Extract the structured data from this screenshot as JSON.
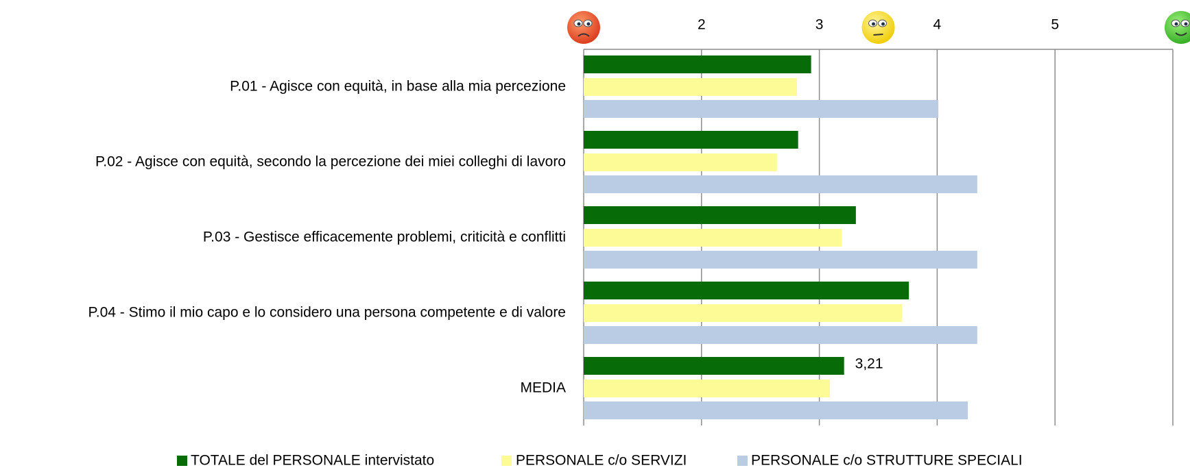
{
  "chart_data": {
    "type": "bar",
    "orientation": "horizontal",
    "categories": [
      "P.01 - Agisce con equità, in base alla mia percezione",
      "P.02 - Agisce con equità, secondo la percezione dei miei colleghi di lavoro",
      "P.03 - Gestisce efficacemente problemi, criticità e conflitti",
      "P.04 - Stimo il mio capo e lo considero una persona competente e di valore",
      "MEDIA"
    ],
    "series": [
      {
        "name": "TOTALE del PERSONALE intervistato",
        "color": "#076b07",
        "values": [
          2.93,
          2.82,
          3.31,
          3.76,
          3.21
        ],
        "value_labels": [
          null,
          null,
          null,
          null,
          "3,21"
        ]
      },
      {
        "name": "PERSONALE c/o SERVIZI",
        "color": "#fdfb96",
        "values": [
          2.81,
          2.64,
          3.19,
          3.7,
          3.09
        ]
      },
      {
        "name": "PERSONALE c/o STRUTTURE SPECIALI",
        "color": "#b9cce4",
        "values": [
          4.01,
          4.34,
          4.34,
          4.34,
          4.26
        ]
      }
    ],
    "xlim": [
      1,
      6
    ],
    "xticks": [
      2,
      3,
      4,
      5
    ],
    "grid": true,
    "legend": "bottom"
  }
}
